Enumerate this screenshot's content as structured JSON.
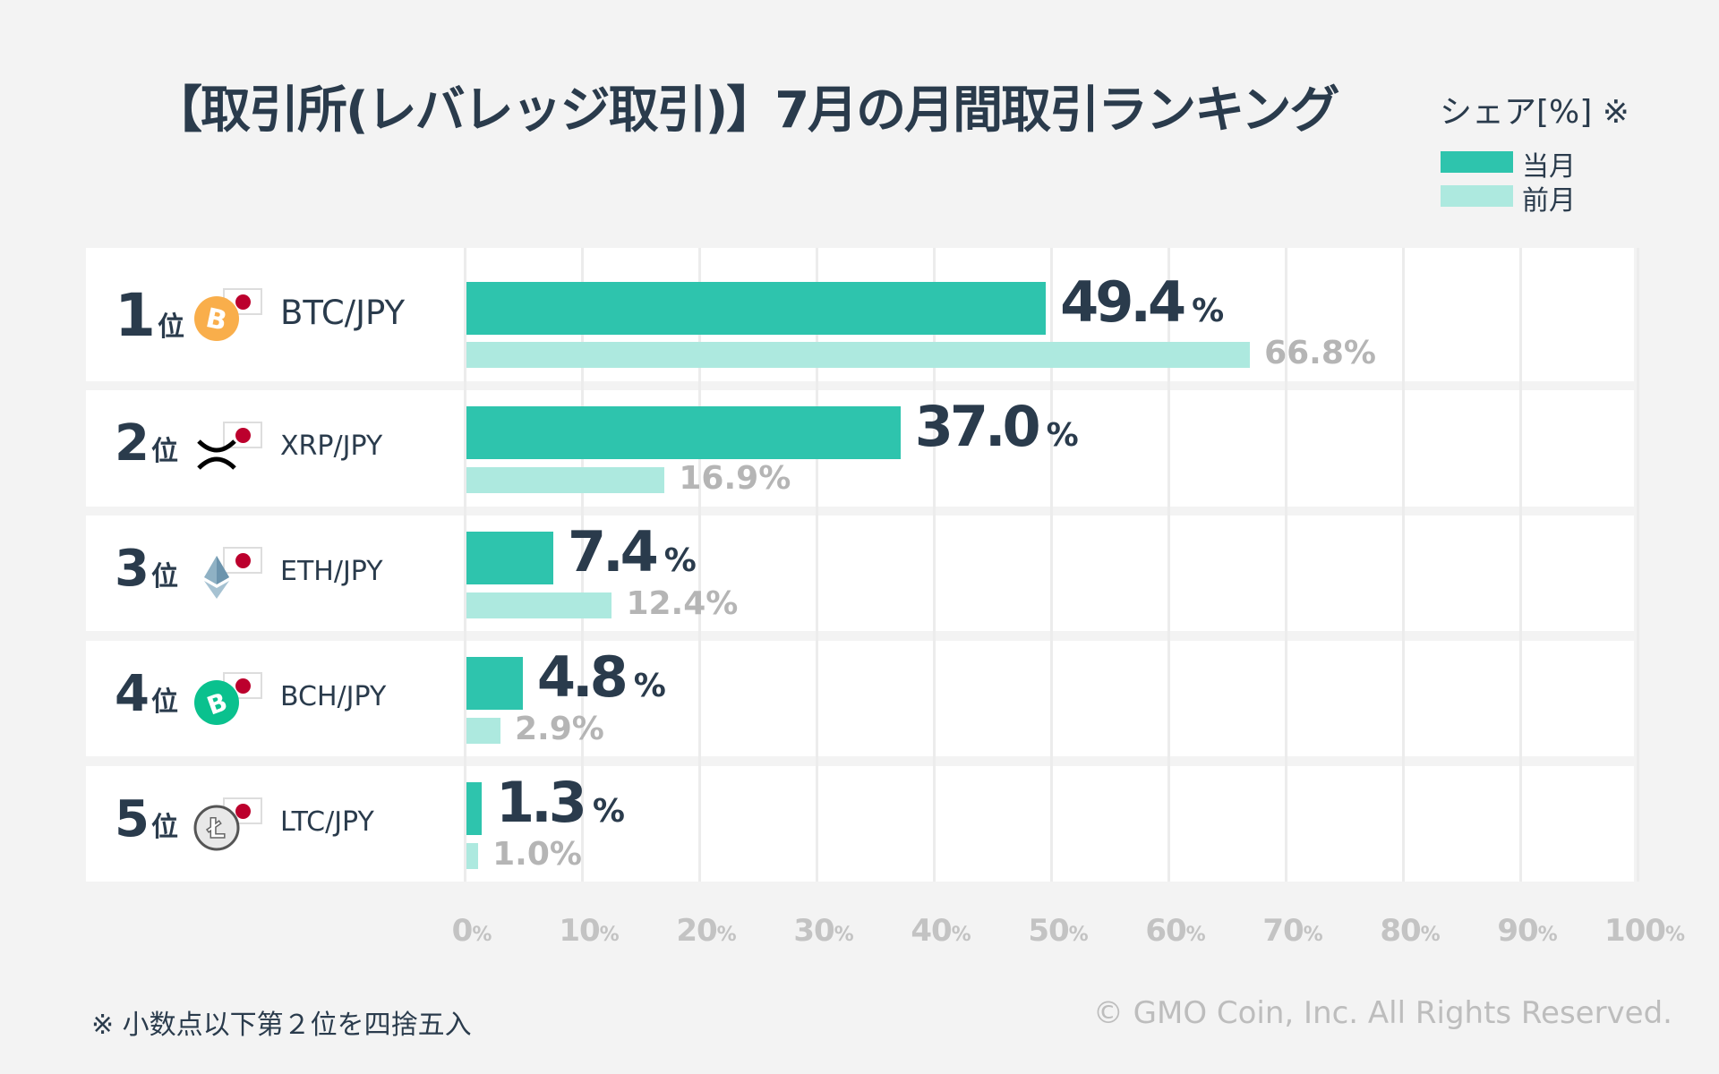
{
  "title": "【取引所(レバレッジ取引)】7月の月間取引ランキング",
  "legend": {
    "title": "シェア[%] ※",
    "items": [
      {
        "label": "当月",
        "color": "#2ec4ad"
      },
      {
        "label": "前月",
        "color": "#ade9df"
      }
    ]
  },
  "rank_suffix": "位",
  "percent_sign": "%",
  "chart_data": {
    "type": "bar",
    "orientation": "horizontal",
    "categories": [
      "BTC/JPY",
      "XRP/JPY",
      "ETH/JPY",
      "BCH/JPY",
      "LTC/JPY"
    ],
    "ranks": [
      "1",
      "2",
      "3",
      "4",
      "5"
    ],
    "coin_icons": [
      "bitcoin-icon",
      "xrp-icon",
      "ethereum-icon",
      "bitcoin-cash-icon",
      "litecoin-icon"
    ],
    "series": [
      {
        "name": "当月",
        "values": [
          49.4,
          37.0,
          7.4,
          4.8,
          1.3
        ],
        "labels": [
          "49.4",
          "37.0",
          "7.4",
          "4.8",
          "1.3"
        ],
        "color": "#2ec4ad"
      },
      {
        "name": "前月",
        "values": [
          66.8,
          16.9,
          12.4,
          2.9,
          1.0
        ],
        "labels": [
          "66.8%",
          "16.9%",
          "12.4%",
          "2.9%",
          "1.0%"
        ],
        "color": "#ade9df"
      }
    ],
    "xlim": [
      0,
      100
    ],
    "xticks": [
      "0",
      "10",
      "20",
      "30",
      "40",
      "50",
      "60",
      "70",
      "80",
      "90",
      "100"
    ],
    "grid": true,
    "legend_position": "top-right"
  },
  "footnote": "※ 小数点以下第２位を四捨五入",
  "copyright": "© GMO Coin, Inc. All Rights Reserved."
}
